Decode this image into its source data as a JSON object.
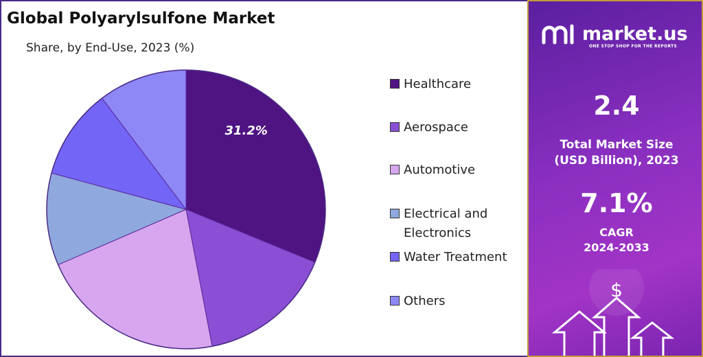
{
  "title": "Global Polyarylsulfone Market",
  "subtitle": "Share, by End-Use, 2023 (%)",
  "chart_data": {
    "type": "pie",
    "title": "Global Polyarylsulfone Market",
    "subtitle": "Share, by End-Use, 2023 (%)",
    "categories": [
      "Healthcare",
      "Aerospace",
      "Automotive",
      "Electrical and Electronics",
      "Water Treatment",
      "Others"
    ],
    "values": [
      31.2,
      15.8,
      21.5,
      10.7,
      10.5,
      10.3
    ],
    "data_labels": [
      "31.2%",
      "",
      "",
      "",
      "",
      ""
    ],
    "colors": [
      "#4f1482",
      "#8a4fd4",
      "#d7a6ee",
      "#8fa8de",
      "#7365f5",
      "#8e88f7"
    ],
    "legend_position": "right"
  },
  "legend": [
    {
      "label": "Healthcare"
    },
    {
      "label": "Aerospace"
    },
    {
      "label": "Automotive"
    },
    {
      "label": "Electrical and Electronics"
    },
    {
      "label": "Water Treatment"
    },
    {
      "label": "Others"
    }
  ],
  "info": {
    "brand": "market.us",
    "tagline": "ONE STOP SHOP FOR THE REPORTS",
    "market_size": "2.4",
    "market_size_caption_1": "Total Market Size",
    "market_size_caption_2": "(USD Billion), 2023",
    "cagr": "7.1%",
    "cagr_caption_1": "CAGR",
    "cagr_caption_2": "2024-2033",
    "dollar_icon": "$"
  }
}
